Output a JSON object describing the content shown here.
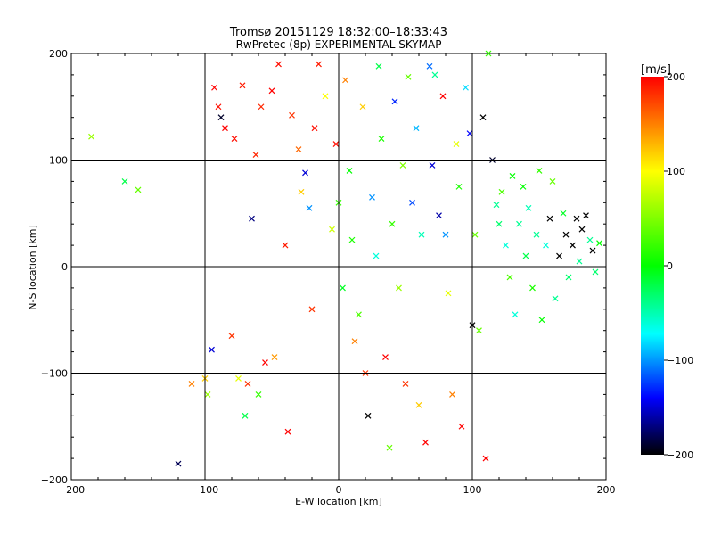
{
  "chart_data": {
    "type": "scatter",
    "title": "Tromsø 20151129 18:32:00–18:33:43",
    "subtitle": "RwPretec (8p) EXPERIMENTAL SKYMAP",
    "xlabel": "E-W location [km]",
    "ylabel": "N-S location [km]",
    "xlim": [
      -200,
      200
    ],
    "ylim": [
      -200,
      200
    ],
    "xticks": [
      -200,
      -100,
      0,
      100,
      200
    ],
    "yticks": [
      -200,
      -100,
      0,
      100,
      200
    ],
    "xtick_labels": [
      "−200",
      "−100",
      "0",
      "100",
      "200"
    ],
    "ytick_labels": [
      "−200",
      "−100",
      "0",
      "100",
      "200"
    ],
    "grid": true,
    "colorbar": {
      "label": "[m/s]",
      "range": [
        -200,
        200
      ],
      "ticks": [
        200,
        100,
        0,
        -100,
        -200
      ],
      "tick_labels": [
        "200",
        "100",
        "0",
        "−100",
        "−200"
      ],
      "colors": [
        "#ff0000",
        "#ffff00",
        "#00ff00",
        "#00ffff",
        "#0000ff",
        "#000000"
      ]
    },
    "series": [
      {
        "marker": "x",
        "points": [
          [
            -185,
            122,
            60
          ],
          [
            -160,
            80,
            -20
          ],
          [
            -150,
            72,
            40
          ],
          [
            -120,
            -185,
            -180
          ],
          [
            -110,
            -110,
            150
          ],
          [
            -100,
            -105,
            120
          ],
          [
            -98,
            -120,
            60
          ],
          [
            -95,
            -78,
            -150
          ],
          [
            -93,
            168,
            200
          ],
          [
            -90,
            150,
            195
          ],
          [
            -88,
            140,
            -190
          ],
          [
            -85,
            130,
            200
          ],
          [
            -80,
            -65,
            180
          ],
          [
            -78,
            120,
            195
          ],
          [
            -75,
            -105,
            90
          ],
          [
            -72,
            170,
            190
          ],
          [
            -70,
            -140,
            -20
          ],
          [
            -68,
            -110,
            180
          ],
          [
            -65,
            45,
            -170
          ],
          [
            -62,
            105,
            185
          ],
          [
            -60,
            -120,
            20
          ],
          [
            -58,
            150,
            185
          ],
          [
            -55,
            -90,
            200
          ],
          [
            -50,
            165,
            200
          ],
          [
            -48,
            -85,
            140
          ],
          [
            -45,
            190,
            195
          ],
          [
            -40,
            20,
            190
          ],
          [
            -38,
            -155,
            200
          ],
          [
            -35,
            142,
            180
          ],
          [
            -30,
            110,
            160
          ],
          [
            -28,
            70,
            120
          ],
          [
            -25,
            88,
            -150
          ],
          [
            -22,
            55,
            -100
          ],
          [
            -20,
            -40,
            180
          ],
          [
            -18,
            130,
            195
          ],
          [
            -15,
            190,
            190
          ],
          [
            -10,
            160,
            100
          ],
          [
            -5,
            35,
            80
          ],
          [
            -2,
            115,
            195
          ],
          [
            0,
            60,
            20
          ],
          [
            3,
            -20,
            -10
          ],
          [
            5,
            175,
            150
          ],
          [
            8,
            90,
            0
          ],
          [
            10,
            25,
            10
          ],
          [
            12,
            -70,
            150
          ],
          [
            15,
            -45,
            30
          ],
          [
            18,
            150,
            120
          ],
          [
            20,
            -100,
            180
          ],
          [
            22,
            -140,
            -200
          ],
          [
            25,
            65,
            -100
          ],
          [
            28,
            10,
            -60
          ],
          [
            30,
            188,
            -20
          ],
          [
            32,
            120,
            10
          ],
          [
            35,
            -85,
            200
          ],
          [
            38,
            -170,
            40
          ],
          [
            40,
            40,
            20
          ],
          [
            42,
            155,
            -130
          ],
          [
            45,
            -20,
            60
          ],
          [
            48,
            95,
            50
          ],
          [
            50,
            -110,
            180
          ],
          [
            52,
            178,
            40
          ],
          [
            55,
            60,
            -120
          ],
          [
            58,
            130,
            -90
          ],
          [
            60,
            -130,
            120
          ],
          [
            62,
            30,
            -50
          ],
          [
            65,
            -165,
            200
          ],
          [
            68,
            188,
            -110
          ],
          [
            70,
            95,
            -150
          ],
          [
            72,
            180,
            -40
          ],
          [
            75,
            48,
            -160
          ],
          [
            78,
            160,
            200
          ],
          [
            80,
            30,
            -100
          ],
          [
            82,
            -25,
            90
          ],
          [
            85,
            -120,
            150
          ],
          [
            88,
            115,
            90
          ],
          [
            90,
            75,
            10
          ],
          [
            92,
            -150,
            200
          ],
          [
            95,
            168,
            -80
          ],
          [
            98,
            125,
            -140
          ],
          [
            100,
            -55,
            -200
          ],
          [
            102,
            30,
            40
          ],
          [
            105,
            -60,
            40
          ],
          [
            108,
            140,
            -200
          ],
          [
            110,
            -180,
            200
          ],
          [
            112,
            200,
            20
          ],
          [
            115,
            100,
            -190
          ],
          [
            118,
            58,
            -40
          ],
          [
            120,
            40,
            -30
          ],
          [
            122,
            70,
            30
          ],
          [
            125,
            20,
            -60
          ],
          [
            128,
            -10,
            30
          ],
          [
            130,
            85,
            0
          ],
          [
            132,
            -45,
            -60
          ],
          [
            135,
            40,
            -40
          ],
          [
            138,
            75,
            0
          ],
          [
            140,
            10,
            -20
          ],
          [
            142,
            55,
            -50
          ],
          [
            145,
            -20,
            10
          ],
          [
            148,
            30,
            -40
          ],
          [
            150,
            90,
            20
          ],
          [
            152,
            -50,
            0
          ],
          [
            155,
            20,
            -60
          ],
          [
            158,
            45,
            -200
          ],
          [
            160,
            80,
            40
          ],
          [
            162,
            -30,
            -40
          ],
          [
            165,
            10,
            -200
          ],
          [
            168,
            50,
            -10
          ],
          [
            170,
            30,
            -200
          ],
          [
            172,
            -10,
            -30
          ],
          [
            175,
            20,
            -200
          ],
          [
            178,
            45,
            -200
          ],
          [
            180,
            5,
            -40
          ],
          [
            182,
            35,
            -200
          ],
          [
            185,
            48,
            -200
          ],
          [
            188,
            25,
            -40
          ],
          [
            190,
            15,
            -200
          ],
          [
            192,
            -5,
            -30
          ],
          [
            195,
            22,
            0
          ]
        ]
      }
    ]
  }
}
